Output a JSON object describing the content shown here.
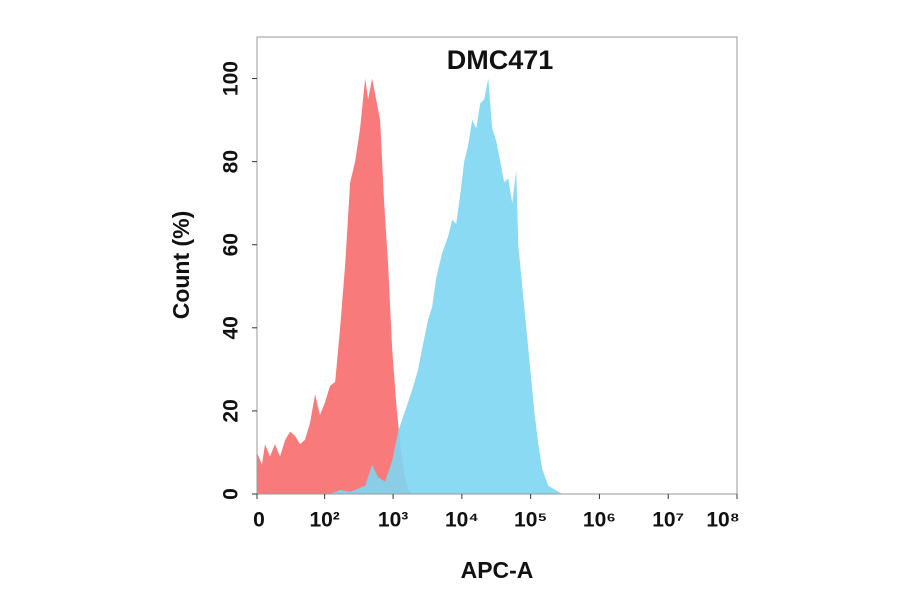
{
  "chart_data": {
    "type": "histogram-overlay",
    "title": "DMC471",
    "xlabel": "APC-A",
    "ylabel": "Count  (%)",
    "xlim": [
      0,
      100000000
    ],
    "ylim": [
      0,
      110
    ],
    "xticks": [
      0,
      {
        "value": 100,
        "label": "10²"
      },
      {
        "value": 1000,
        "label": "10³"
      },
      {
        "value": 10000,
        "label": "10⁴"
      },
      {
        "value": 100000,
        "label": "10⁵"
      },
      {
        "value": 1000000,
        "label": "10⁶"
      },
      {
        "value": 10000000,
        "label": "10⁷"
      },
      {
        "value": 100000000,
        "label": "10⁸"
      }
    ],
    "yticks": [
      0,
      20,
      40,
      60,
      80,
      100
    ],
    "series": [
      {
        "color": "#f87a7a",
        "x": [
          0,
          3.5,
          5.7,
          9.4,
          13.4,
          17.8,
          22.8,
          28.4,
          34.5,
          41.8,
          50,
          60,
          72,
          85,
          101,
          120,
          143,
          169,
          200,
          237,
          280,
          331,
          392,
          433,
          495,
          566,
          647,
          741,
          847,
          968,
          1107,
          1266,
          1447,
          1655,
          1892
        ],
        "values": [
          10,
          7,
          12,
          9,
          12,
          9,
          13,
          15,
          14,
          12,
          13,
          17,
          24,
          19,
          22,
          26,
          27,
          40,
          55,
          75,
          80,
          88,
          100,
          95,
          100,
          95,
          90,
          70,
          55,
          35,
          22,
          12,
          5,
          1,
          0
        ]
      },
      {
        "color": "#7dd6f2",
        "x": [
          120,
          169,
          237,
          392,
          495,
          605,
          765,
          968,
          1182,
          1495,
          1890,
          2311,
          2643,
          3232,
          3696,
          4226,
          5168,
          6318,
          7224,
          8260,
          9447,
          10800,
          12350,
          14120,
          16150,
          18470,
          21120,
          24150,
          27610,
          31570,
          36100,
          41280,
          47200,
          53970,
          61710,
          66000,
          75470,
          86300,
          98670,
          112800,
          129000,
          147500,
          180400,
          228100,
          288400
        ],
        "values": [
          0,
          1,
          0.5,
          2,
          7,
          4,
          3,
          8,
          15,
          20,
          25,
          30,
          35,
          42,
          45,
          52,
          58,
          62,
          66,
          65,
          72,
          80,
          84,
          90,
          88,
          94,
          95,
          100,
          88,
          85,
          80,
          75,
          76,
          70,
          78,
          60,
          50,
          40,
          30,
          20,
          12,
          6,
          2,
          1,
          0
        ]
      }
    ]
  }
}
